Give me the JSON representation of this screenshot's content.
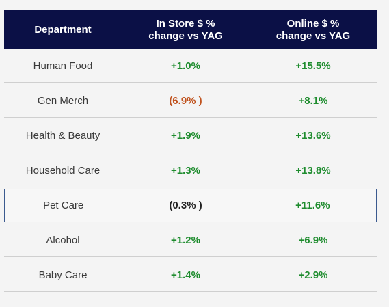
{
  "chart_data": {
    "type": "table",
    "columns": [
      "Department",
      "In Store $ %\nchange vs YAG",
      "Online $ %\nchange vs YAG"
    ],
    "rows": [
      {
        "department": "Human Food",
        "in_store": "+1.0%",
        "online": "+15.5%",
        "in_store_color": "#1e8c2e",
        "online_color": "#1e8c2e"
      },
      {
        "department": "Gen Merch",
        "in_store": "(6.9% )",
        "online": "+8.1%",
        "in_store_color": "#c0531f",
        "online_color": "#1e8c2e"
      },
      {
        "department": "Health & Beauty",
        "in_store": "+1.9%",
        "online": "+13.6%",
        "in_store_color": "#1e8c2e",
        "online_color": "#1e8c2e"
      },
      {
        "department": "Household Care",
        "in_store": "+1.3%",
        "online": "+13.8%",
        "in_store_color": "#1e8c2e",
        "online_color": "#1e8c2e"
      },
      {
        "department": "Pet Care",
        "in_store": "(0.3% )",
        "online": "+11.6%",
        "in_store_color": "#222222",
        "online_color": "#1e8c2e",
        "highlighted": true
      },
      {
        "department": "Alcohol",
        "in_store": "+1.2%",
        "online": "+6.9%",
        "in_store_color": "#1e8c2e",
        "online_color": "#1e8c2e"
      },
      {
        "department": "Baby Care",
        "in_store": "+1.4%",
        "online": "+2.9%",
        "in_store_color": "#1e8c2e",
        "online_color": "#1e8c2e"
      }
    ],
    "header_bg": "#0b1046",
    "highlight_border": "#3b5a8f"
  }
}
